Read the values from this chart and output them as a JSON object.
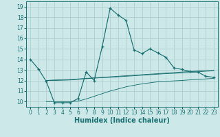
{
  "xlabel": "Humidex (Indice chaleur)",
  "bg_color": "#cce8e8",
  "line_color": "#1a7070",
  "grid_color": "#b0d0d0",
  "x_main": [
    0,
    1,
    2,
    3,
    4,
    5,
    6,
    7,
    8,
    9,
    10,
    11,
    12,
    13,
    14,
    15,
    16,
    17,
    18,
    19,
    20,
    21,
    22,
    23
  ],
  "y_main": [
    14.0,
    13.1,
    11.9,
    9.9,
    9.9,
    9.9,
    10.3,
    12.8,
    12.0,
    15.2,
    18.85,
    18.2,
    17.7,
    14.9,
    14.55,
    15.0,
    14.6,
    14.2,
    13.2,
    13.05,
    12.85,
    12.8,
    12.4,
    12.3
  ],
  "x_upper": [
    2,
    3,
    4,
    5,
    6,
    7,
    8,
    9,
    10,
    11,
    12,
    13,
    14,
    15,
    16,
    17,
    18,
    19,
    20,
    21,
    22,
    23
  ],
  "y_upper": [
    12.0,
    12.05,
    12.07,
    12.1,
    12.15,
    12.2,
    12.25,
    12.3,
    12.35,
    12.4,
    12.45,
    12.5,
    12.55,
    12.6,
    12.65,
    12.7,
    12.75,
    12.8,
    12.85,
    12.9,
    12.93,
    12.95
  ],
  "x_lower": [
    2,
    3,
    4,
    5,
    6,
    7,
    8,
    9,
    10,
    11,
    12,
    13,
    14,
    15,
    16,
    17,
    18,
    19,
    20,
    21,
    22,
    23
  ],
  "y_lower": [
    10.0,
    10.0,
    10.0,
    10.0,
    10.05,
    10.25,
    10.5,
    10.75,
    11.0,
    11.2,
    11.4,
    11.55,
    11.68,
    11.78,
    11.88,
    11.92,
    11.96,
    12.0,
    12.06,
    12.1,
    12.15,
    12.2
  ],
  "x_mid": [
    2,
    3,
    4,
    5,
    6,
    7,
    8,
    9,
    10,
    11,
    12,
    13,
    14,
    15,
    16,
    17,
    18,
    19,
    20,
    21,
    22,
    23
  ],
  "y_mid": [
    12.0,
    12.0,
    12.02,
    12.05,
    12.1,
    12.18,
    12.22,
    12.27,
    12.3,
    12.35,
    12.4,
    12.45,
    12.5,
    12.55,
    12.6,
    12.65,
    12.68,
    12.72,
    12.76,
    12.82,
    12.88,
    12.92
  ],
  "xlim": [
    -0.5,
    23.5
  ],
  "ylim": [
    9.5,
    19.5
  ],
  "yticks": [
    10,
    11,
    12,
    13,
    14,
    15,
    16,
    17,
    18,
    19
  ],
  "xticks": [
    0,
    1,
    2,
    3,
    4,
    5,
    6,
    7,
    8,
    9,
    10,
    11,
    12,
    13,
    14,
    15,
    16,
    17,
    18,
    19,
    20,
    21,
    22,
    23
  ],
  "tick_fontsize": 5.5,
  "xlabel_fontsize": 7.0
}
